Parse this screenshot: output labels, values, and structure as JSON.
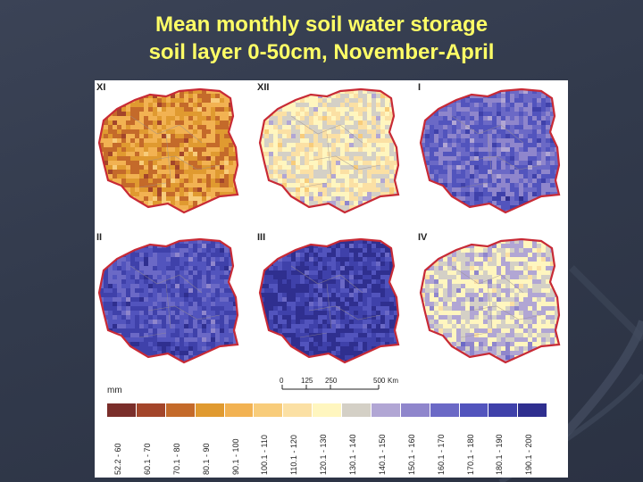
{
  "title": {
    "line1": "Mean monthly soil water storage",
    "line2": "soil layer 0-50cm, November-April"
  },
  "panels": [
    {
      "label": "XI",
      "base_class": 3
    },
    {
      "label": "XII",
      "base_class": 7
    },
    {
      "label": "I",
      "base_class": 11
    },
    {
      "label": "II",
      "base_class": 12
    },
    {
      "label": "III",
      "base_class": 13
    },
    {
      "label": "IV",
      "base_class": 8
    }
  ],
  "scale_bar": {
    "ticks": [
      "0",
      "125",
      "250",
      "500"
    ],
    "unit": "Km"
  },
  "legend": {
    "unit": "mm",
    "classes": [
      {
        "label": "52.2 - 60",
        "color": "#7a2e2a"
      },
      {
        "label": "60.1 - 70",
        "color": "#a3452a"
      },
      {
        "label": "70.1 - 80",
        "color": "#c46a2a"
      },
      {
        "label": "80.1 - 90",
        "color": "#e09a30"
      },
      {
        "label": "90.1 - 100",
        "color": "#f2b252"
      },
      {
        "label": "100.1 - 110",
        "color": "#f8cc7a"
      },
      {
        "label": "110.1 - 120",
        "color": "#fbe0a4"
      },
      {
        "label": "120.1 - 130",
        "color": "#fff6bf"
      },
      {
        "label": "130.1 - 140",
        "color": "#d4d0c6"
      },
      {
        "label": "140.1 - 150",
        "color": "#b1a6d4"
      },
      {
        "label": "150.1 - 160",
        "color": "#8f86cc"
      },
      {
        "label": "160.1 - 170",
        "color": "#6b69c6"
      },
      {
        "label": "170.1 - 180",
        "color": "#5254bd"
      },
      {
        "label": "180.1 - 190",
        "color": "#3f41aa"
      },
      {
        "label": "190.1 - 200",
        "color": "#2f2f8f"
      }
    ]
  },
  "colors": {
    "title": "#ffff66",
    "border": "#c82a35",
    "background": "#343c4f"
  }
}
